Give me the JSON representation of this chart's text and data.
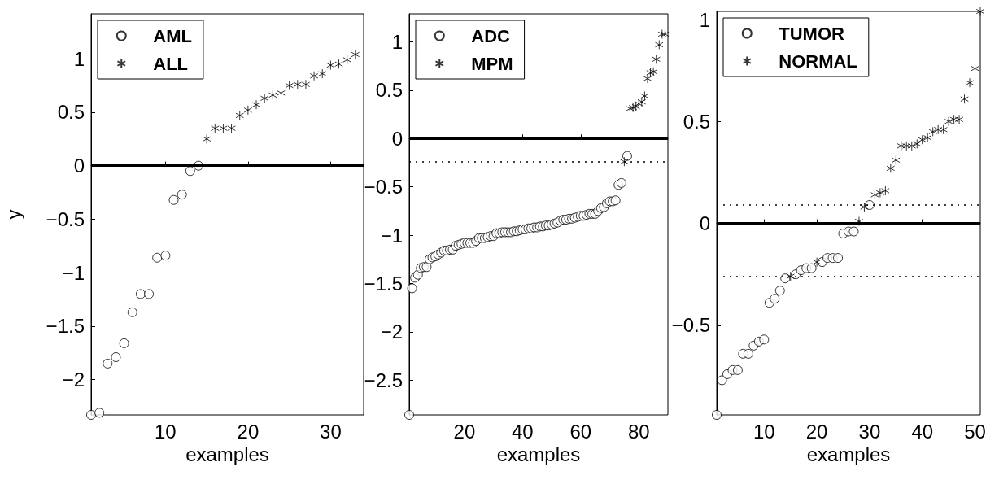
{
  "chart_data": [
    {
      "type": "scatter",
      "xlabel": "examples",
      "ylabel": "y",
      "xlim": [
        1,
        34
      ],
      "ylim": [
        -2.33,
        1.42
      ],
      "xticks": [
        10,
        20,
        30
      ],
      "yticks": [
        -2,
        -1.5,
        -1,
        -0.5,
        0,
        0.5,
        1
      ],
      "grid": false,
      "legend": "top left",
      "ref_lines": [
        {
          "axis": "y",
          "value": 0,
          "color": "#000000",
          "line_style": "solid"
        }
      ],
      "series": [
        {
          "name": "AML",
          "marker": "circle",
          "color": "#000000",
          "x": [
            1,
            2,
            3,
            4,
            5,
            6,
            7,
            8,
            9,
            10,
            11,
            12,
            13,
            14
          ],
          "values": [
            -2.33,
            -2.31,
            -1.85,
            -1.79,
            -1.66,
            -1.37,
            -1.2,
            -1.2,
            -0.86,
            -0.84,
            -0.32,
            -0.27,
            -0.05,
            0.0
          ]
        },
        {
          "name": "ALL",
          "marker": "cross",
          "color": "#000000",
          "x": [
            15,
            16,
            17,
            18,
            19,
            20,
            21,
            22,
            23,
            24,
            25,
            26,
            27,
            28,
            29,
            30,
            31,
            32,
            33
          ],
          "values": [
            0.25,
            0.35,
            0.35,
            0.35,
            0.47,
            0.52,
            0.57,
            0.63,
            0.66,
            0.68,
            0.75,
            0.76,
            0.76,
            0.84,
            0.86,
            0.94,
            0.95,
            0.99,
            1.04
          ]
        }
      ]
    },
    {
      "type": "scatter",
      "xlabel": "examples",
      "xlim": [
        1,
        90
      ],
      "ylim": [
        -2.86,
        1.29
      ],
      "xticks": [
        20,
        40,
        60,
        80
      ],
      "yticks": [
        -2.5,
        -2,
        -1.5,
        -1,
        -0.5,
        0,
        0.5,
        1
      ],
      "grid": false,
      "legend": "top left",
      "ref_lines": [
        {
          "axis": "y",
          "value": 0,
          "color": "#000000",
          "line_style": "solid"
        },
        {
          "axis": "y",
          "value": -0.24,
          "color": "#000000",
          "line_style": "dotted"
        }
      ],
      "series": [
        {
          "name": "ADC",
          "marker": "circle",
          "color": "#000000",
          "x": [
            1,
            2,
            3,
            4,
            5,
            6,
            7,
            8,
            9,
            10,
            11,
            12,
            13,
            14,
            15,
            16,
            17,
            18,
            19,
            20,
            21,
            22,
            23,
            24,
            25,
            26,
            27,
            28,
            29,
            30,
            31,
            32,
            33,
            34,
            35,
            36,
            37,
            38,
            39,
            40,
            41,
            42,
            43,
            44,
            45,
            46,
            47,
            48,
            49,
            50,
            51,
            52,
            53,
            54,
            55,
            56,
            57,
            58,
            59,
            60,
            61,
            62,
            63,
            64,
            65,
            66,
            67,
            68,
            69,
            70,
            71,
            72,
            73,
            74,
            76
          ],
          "values": [
            -2.86,
            -1.55,
            -1.44,
            -1.41,
            -1.34,
            -1.33,
            -1.33,
            -1.25,
            -1.23,
            -1.22,
            -1.2,
            -1.18,
            -1.16,
            -1.16,
            -1.15,
            -1.15,
            -1.11,
            -1.1,
            -1.09,
            -1.08,
            -1.08,
            -1.08,
            -1.08,
            -1.06,
            -1.03,
            -1.03,
            -1.03,
            -1.02,
            -1.01,
            -1.01,
            -0.98,
            -0.98,
            -0.97,
            -0.97,
            -0.97,
            -0.97,
            -0.96,
            -0.96,
            -0.95,
            -0.94,
            -0.94,
            -0.93,
            -0.93,
            -0.92,
            -0.92,
            -0.91,
            -0.91,
            -0.9,
            -0.9,
            -0.89,
            -0.88,
            -0.87,
            -0.85,
            -0.84,
            -0.84,
            -0.83,
            -0.83,
            -0.82,
            -0.81,
            -0.8,
            -0.8,
            -0.79,
            -0.78,
            -0.78,
            -0.78,
            -0.75,
            -0.72,
            -0.71,
            -0.67,
            -0.65,
            -0.65,
            -0.64,
            -0.48,
            -0.46,
            -0.18
          ]
        },
        {
          "name": "MPM",
          "marker": "cross",
          "color": "#000000",
          "x": [
            75,
            77,
            78,
            79,
            80,
            81,
            82,
            83,
            84,
            85,
            86,
            87,
            88,
            89
          ],
          "values": [
            -0.24,
            0.31,
            0.32,
            0.33,
            0.36,
            0.38,
            0.44,
            0.62,
            0.68,
            0.69,
            0.82,
            0.97,
            1.08,
            1.08
          ]
        }
      ]
    },
    {
      "type": "scatter",
      "xlabel": "examples",
      "xlim": [
        1,
        51
      ],
      "ylim": [
        -0.94,
        1.04
      ],
      "xticks": [
        10,
        20,
        30,
        40,
        50
      ],
      "yticks": [
        -0.5,
        0,
        0.5,
        1
      ],
      "grid": false,
      "legend": "top left",
      "ref_lines": [
        {
          "axis": "y",
          "value": 0,
          "color": "#000000",
          "line_style": "solid"
        },
        {
          "axis": "y",
          "value": 0.09,
          "color": "#000000",
          "line_style": "dotted"
        },
        {
          "axis": "y",
          "value": -0.26,
          "color": "#000000",
          "line_style": "dotted"
        }
      ],
      "series": [
        {
          "name": "TUMOR",
          "marker": "circle",
          "color": "#000000",
          "x": [
            1,
            2,
            3,
            4,
            5,
            6,
            7,
            8,
            9,
            10,
            11,
            12,
            13,
            14,
            16,
            17,
            18,
            19,
            21,
            22,
            23,
            24,
            25,
            26,
            27,
            30
          ],
          "values": [
            -0.94,
            -0.77,
            -0.74,
            -0.72,
            -0.72,
            -0.64,
            -0.64,
            -0.6,
            -0.58,
            -0.57,
            -0.39,
            -0.37,
            -0.33,
            -0.27,
            -0.25,
            -0.23,
            -0.22,
            -0.22,
            -0.19,
            -0.17,
            -0.17,
            -0.17,
            -0.05,
            -0.04,
            -0.04,
            0.09
          ]
        },
        {
          "name": "NORMAL",
          "marker": "cross",
          "color": "#000000",
          "x": [
            15,
            20,
            28,
            29,
            31,
            32,
            33,
            34,
            35,
            36,
            37,
            38,
            39,
            40,
            41,
            42,
            43,
            44,
            45,
            46,
            47,
            48,
            49,
            50,
            51
          ],
          "values": [
            -0.26,
            -0.19,
            0.01,
            0.08,
            0.14,
            0.15,
            0.16,
            0.27,
            0.31,
            0.38,
            0.38,
            0.38,
            0.39,
            0.41,
            0.42,
            0.45,
            0.46,
            0.46,
            0.5,
            0.51,
            0.51,
            0.61,
            0.69,
            0.76,
            1.04
          ]
        }
      ]
    }
  ]
}
